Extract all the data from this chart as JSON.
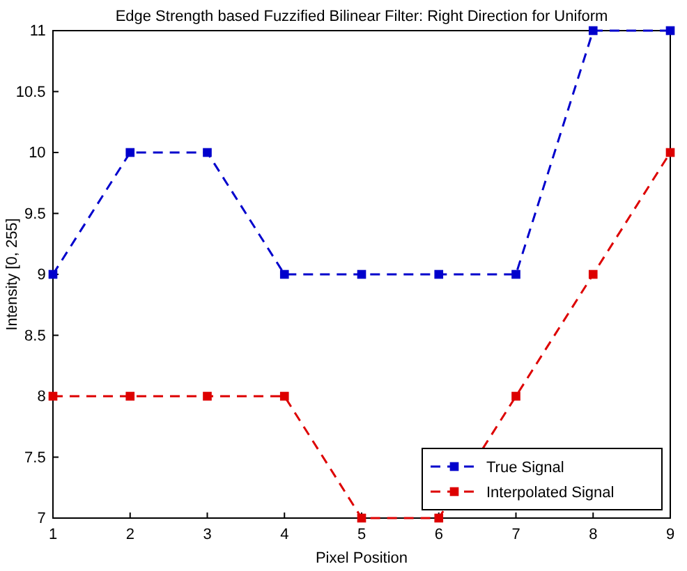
{
  "chart_data": {
    "type": "line",
    "title": "Edge Strength based Fuzzified Bilinear Filter: Right Direction for Uniform",
    "xlabel": "Pixel Position",
    "ylabel": "Intensity [0, 255]",
    "x": [
      1,
      2,
      3,
      4,
      5,
      6,
      7,
      8,
      9
    ],
    "series": [
      {
        "name": "True Signal",
        "color": "#0000cc",
        "values": [
          9,
          10,
          10,
          9,
          9,
          9,
          9,
          11,
          11
        ]
      },
      {
        "name": "Interpolated Signal",
        "color": "#dd0000",
        "values": [
          8,
          8,
          8,
          8,
          7,
          7,
          8,
          9,
          10
        ]
      }
    ],
    "xlim": [
      1,
      9
    ],
    "xticks": [
      1,
      2,
      3,
      4,
      5,
      6,
      7,
      8,
      9
    ],
    "ylim": [
      7,
      11
    ],
    "yticks": [
      7,
      7.5,
      8,
      8.5,
      9,
      9.5,
      10,
      10.5,
      11
    ],
    "grid": false,
    "legend": "bottom right",
    "marker": "square",
    "line_style": "dashed"
  }
}
